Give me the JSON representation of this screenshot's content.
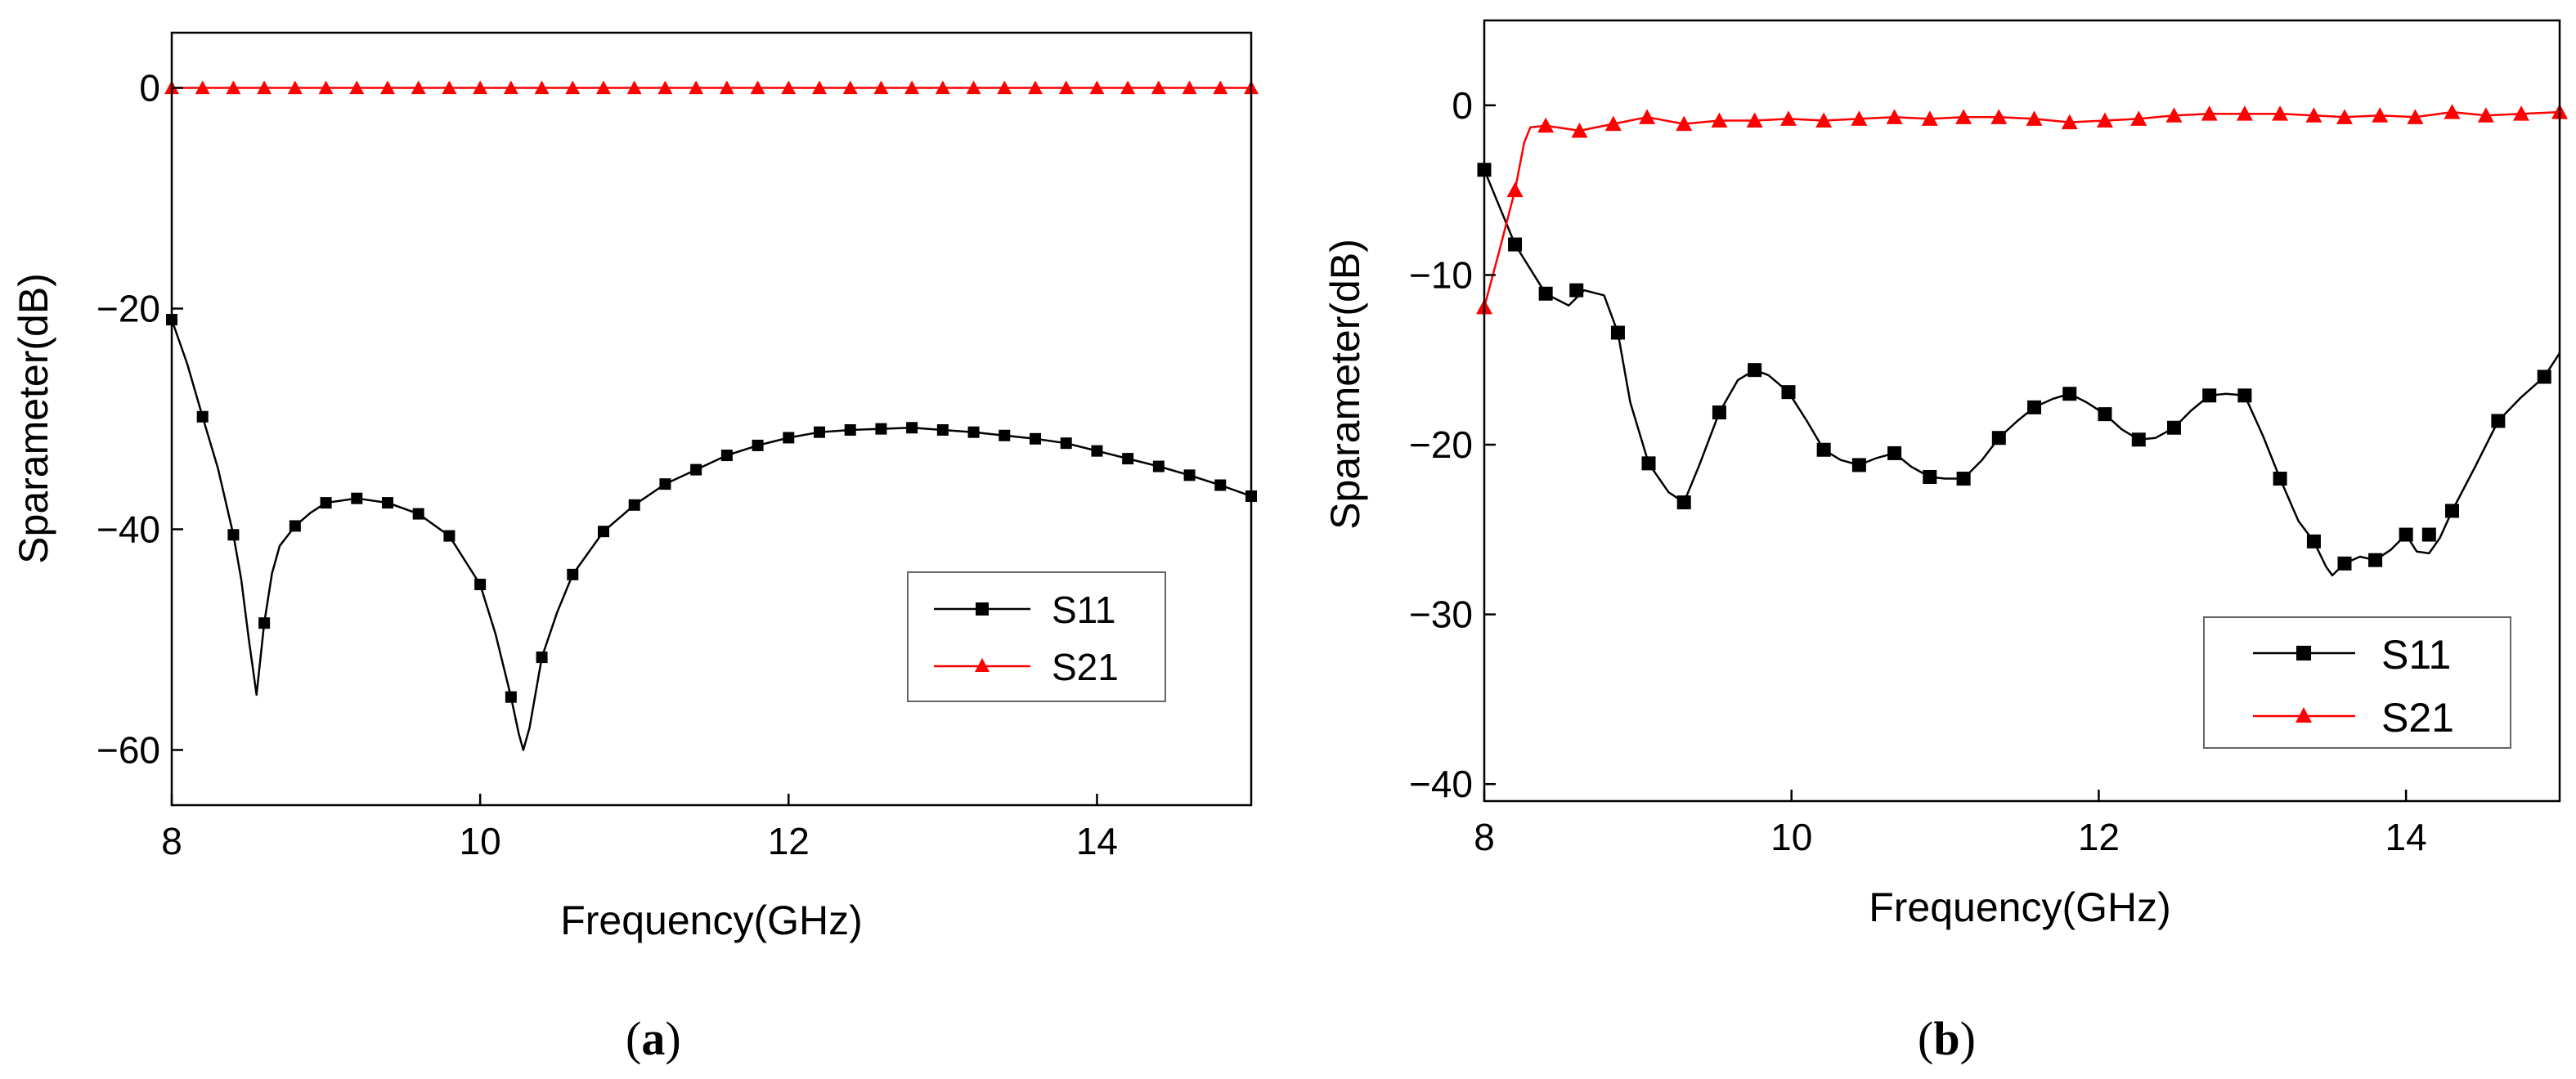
{
  "chart_data": [
    {
      "type": "line",
      "panel_label": "a",
      "xlabel": "Frequency(GHz)",
      "ylabel": "Sparameter(dB)",
      "xlim": [
        8,
        15
      ],
      "ylim": [
        -65,
        5
      ],
      "xticks": [
        "8",
        "10",
        "12",
        "14"
      ],
      "yticks": [
        "0",
        "-20",
        "-40",
        "-60"
      ],
      "legend_position": "bottom-right",
      "series": [
        {
          "name": "S11",
          "color": "#000000",
          "marker": "square",
          "x": [
            8.0,
            8.2,
            8.4,
            8.6,
            8.8,
            9.0,
            9.2,
            9.4,
            9.6,
            9.8,
            10.0,
            10.2,
            10.4,
            10.6,
            10.8,
            11.0,
            11.2,
            11.4,
            11.6,
            11.8,
            12.0,
            12.2,
            12.4,
            12.6,
            12.8,
            13.0,
            13.2,
            13.4,
            13.6,
            13.8,
            14.0,
            14.2,
            14.4,
            14.6,
            14.8,
            15.0
          ],
          "y": [
            -21,
            -29.8,
            -40.5,
            -48.5,
            -39.7,
            -37.6,
            -37.2,
            -37.6,
            -38.6,
            -40.6,
            -45,
            -55.2,
            -51.6,
            -44.1,
            -40.2,
            -37.8,
            -35.9,
            -34.6,
            -33.3,
            -32.4,
            -31.7,
            -31.2,
            -31.0,
            -30.9,
            -30.8,
            -31.0,
            -31.2,
            -31.5,
            -31.8,
            -32.2,
            -32.9,
            -33.6,
            -34.3,
            -35.1,
            -36.0,
            -37.0
          ],
          "curve_x": [
            8.0,
            8.1,
            8.2,
            8.3,
            8.4,
            8.45,
            8.5,
            8.55,
            8.6,
            8.65,
            8.7,
            8.8,
            8.9,
            9.0,
            9.2,
            9.4,
            9.6,
            9.8,
            10.0,
            10.1,
            10.2,
            10.25,
            10.28,
            10.32,
            10.4,
            10.5,
            10.6,
            10.8,
            11.0,
            11.2,
            11.4,
            11.6,
            11.8,
            12.0,
            12.2,
            12.4,
            12.6,
            12.8,
            13.0,
            13.2,
            13.4,
            13.6,
            13.8,
            14.0,
            14.2,
            14.4,
            14.6,
            14.8,
            15.0
          ],
          "curve_y": [
            -21,
            -25,
            -29.8,
            -34.5,
            -40.5,
            -44.5,
            -50,
            -55,
            -48.5,
            -44,
            -41.5,
            -39.7,
            -38.5,
            -37.6,
            -37.2,
            -37.6,
            -38.6,
            -40.6,
            -45,
            -49.5,
            -55.2,
            -58.5,
            -60,
            -58,
            -51.6,
            -47.5,
            -44.1,
            -40.2,
            -37.8,
            -35.9,
            -34.6,
            -33.3,
            -32.4,
            -31.7,
            -31.2,
            -31.0,
            -30.9,
            -30.8,
            -31.0,
            -31.2,
            -31.5,
            -31.8,
            -32.2,
            -32.9,
            -33.6,
            -34.3,
            -35.1,
            -36.0,
            -37.0
          ]
        },
        {
          "name": "S21",
          "color": "#ff0000",
          "marker": "triangle",
          "x": [
            8.0,
            8.2,
            8.4,
            8.6,
            8.8,
            9.0,
            9.2,
            9.4,
            9.6,
            9.8,
            10.0,
            10.2,
            10.4,
            10.6,
            10.8,
            11.0,
            11.2,
            11.4,
            11.6,
            11.8,
            12.0,
            12.2,
            12.4,
            12.6,
            12.8,
            13.0,
            13.2,
            13.4,
            13.6,
            13.8,
            14.0,
            14.2,
            14.4,
            14.6,
            14.8,
            15.0
          ],
          "y": [
            0,
            0,
            0,
            0,
            0,
            0,
            0,
            0,
            0,
            0,
            0,
            0,
            0,
            0,
            0,
            0,
            0,
            0,
            0,
            0,
            0,
            0,
            0,
            0,
            0,
            0,
            0,
            0,
            0,
            0,
            0,
            0,
            0,
            0,
            0,
            0
          ]
        }
      ]
    },
    {
      "type": "line",
      "panel_label": "b",
      "xlabel": "Frequency(GHz)",
      "ylabel": "Sparameter(dB)",
      "xlim": [
        8,
        15
      ],
      "ylim": [
        -41,
        5
      ],
      "xticks": [
        "8",
        "10",
        "12",
        "14"
      ],
      "yticks": [
        "0",
        "-10",
        "-20",
        "-30",
        "-40"
      ],
      "legend_position": "bottom-right",
      "series": [
        {
          "name": "S11",
          "color": "#000000",
          "marker": "square",
          "x": [
            8.0,
            8.2,
            8.4,
            8.6,
            8.87,
            9.07,
            9.3,
            9.53,
            9.76,
            9.98,
            10.21,
            10.44,
            10.67,
            10.9,
            11.12,
            11.35,
            11.58,
            11.81,
            12.04,
            12.26,
            12.49,
            12.72,
            12.95,
            13.18,
            13.4,
            13.6,
            13.8,
            14.0,
            14.15,
            14.3,
            14.6,
            14.9
          ],
          "y": [
            -3.8,
            -8.2,
            -11.1,
            -10.9,
            -13.4,
            -21.1,
            -23.4,
            -18.1,
            -15.6,
            -16.9,
            -20.3,
            -21.2,
            -20.5,
            -21.9,
            -22.0,
            -19.6,
            -17.8,
            -17.0,
            -18.2,
            -19.7,
            -19.0,
            -17.1,
            -17.1,
            -22.0,
            -25.7,
            -27.0,
            -26.8,
            -25.3,
            -25.3,
            -23.9,
            -18.6,
            -16.0
          ],
          "curve_x": [
            8.0,
            8.2,
            8.4,
            8.55,
            8.65,
            8.78,
            8.87,
            8.95,
            9.07,
            9.2,
            9.3,
            9.4,
            9.53,
            9.65,
            9.76,
            9.85,
            9.98,
            10.1,
            10.21,
            10.32,
            10.44,
            10.55,
            10.67,
            10.78,
            10.9,
            11.0,
            11.12,
            11.24,
            11.35,
            11.47,
            11.58,
            11.7,
            11.81,
            11.92,
            12.04,
            12.15,
            12.26,
            12.37,
            12.49,
            12.6,
            12.72,
            12.83,
            12.95,
            13.07,
            13.18,
            13.3,
            13.4,
            13.48,
            13.52,
            13.6,
            13.7,
            13.8,
            13.9,
            14.0,
            14.07,
            14.15,
            14.22,
            14.3,
            14.45,
            14.6,
            14.75,
            14.9,
            15.0
          ],
          "curve_y": [
            -3.8,
            -8.2,
            -11.1,
            -11.8,
            -10.9,
            -11.2,
            -13.4,
            -17.5,
            -21.1,
            -22.8,
            -23.4,
            -21.2,
            -18.1,
            -16.2,
            -15.6,
            -15.9,
            -16.9,
            -18.6,
            -20.3,
            -20.9,
            -21.2,
            -20.8,
            -20.5,
            -21.3,
            -21.9,
            -22.0,
            -22.0,
            -20.9,
            -19.6,
            -18.6,
            -17.8,
            -17.3,
            -17.0,
            -17.5,
            -18.2,
            -19.1,
            -19.7,
            -19.6,
            -19.0,
            -18.0,
            -17.1,
            -17.0,
            -17.1,
            -19.5,
            -22.0,
            -24.5,
            -25.7,
            -27.2,
            -27.7,
            -27.0,
            -26.6,
            -26.8,
            -26.2,
            -25.3,
            -26.3,
            -26.4,
            -25.5,
            -23.9,
            -21.3,
            -18.6,
            -17.2,
            -16.0,
            -14.6
          ]
        },
        {
          "name": "S21",
          "color": "#ff0000",
          "marker": "triangle",
          "x": [
            8.0,
            8.2,
            8.4,
            8.62,
            8.84,
            9.06,
            9.3,
            9.53,
            9.76,
            9.98,
            10.21,
            10.44,
            10.67,
            10.9,
            11.12,
            11.35,
            11.58,
            11.81,
            12.04,
            12.26,
            12.49,
            12.72,
            12.95,
            13.18,
            13.4,
            13.6,
            13.83,
            14.06,
            14.3,
            14.52,
            14.75,
            15.0
          ],
          "y": [
            -11.9,
            -5.0,
            -1.2,
            -1.5,
            -1.1,
            -0.7,
            -1.1,
            -0.9,
            -0.9,
            -0.8,
            -0.9,
            -0.8,
            -0.7,
            -0.8,
            -0.7,
            -0.7,
            -0.8,
            -1.0,
            -0.9,
            -0.8,
            -0.6,
            -0.5,
            -0.5,
            -0.5,
            -0.6,
            -0.7,
            -0.6,
            -0.7,
            -0.4,
            -0.6,
            -0.5,
            -0.4
          ],
          "curve_x": [
            8.0,
            8.1,
            8.2,
            8.26,
            8.3,
            8.4,
            8.62,
            8.84,
            9.06,
            9.3,
            9.53,
            9.76,
            9.98,
            10.21,
            10.44,
            10.67,
            10.9,
            11.12,
            11.35,
            11.58,
            11.81,
            12.04,
            12.26,
            12.49,
            12.72,
            12.95,
            13.18,
            13.4,
            13.6,
            13.83,
            14.06,
            14.3,
            14.52,
            14.75,
            15.0
          ],
          "curve_y": [
            -11.9,
            -8.5,
            -5.0,
            -2.2,
            -1.3,
            -1.2,
            -1.5,
            -1.1,
            -0.7,
            -1.1,
            -0.9,
            -0.9,
            -0.8,
            -0.9,
            -0.8,
            -0.7,
            -0.8,
            -0.7,
            -0.7,
            -0.8,
            -1.0,
            -0.9,
            -0.8,
            -0.6,
            -0.5,
            -0.5,
            -0.5,
            -0.6,
            -0.7,
            -0.6,
            -0.7,
            -0.4,
            -0.6,
            -0.5,
            -0.4
          ]
        }
      ]
    }
  ]
}
